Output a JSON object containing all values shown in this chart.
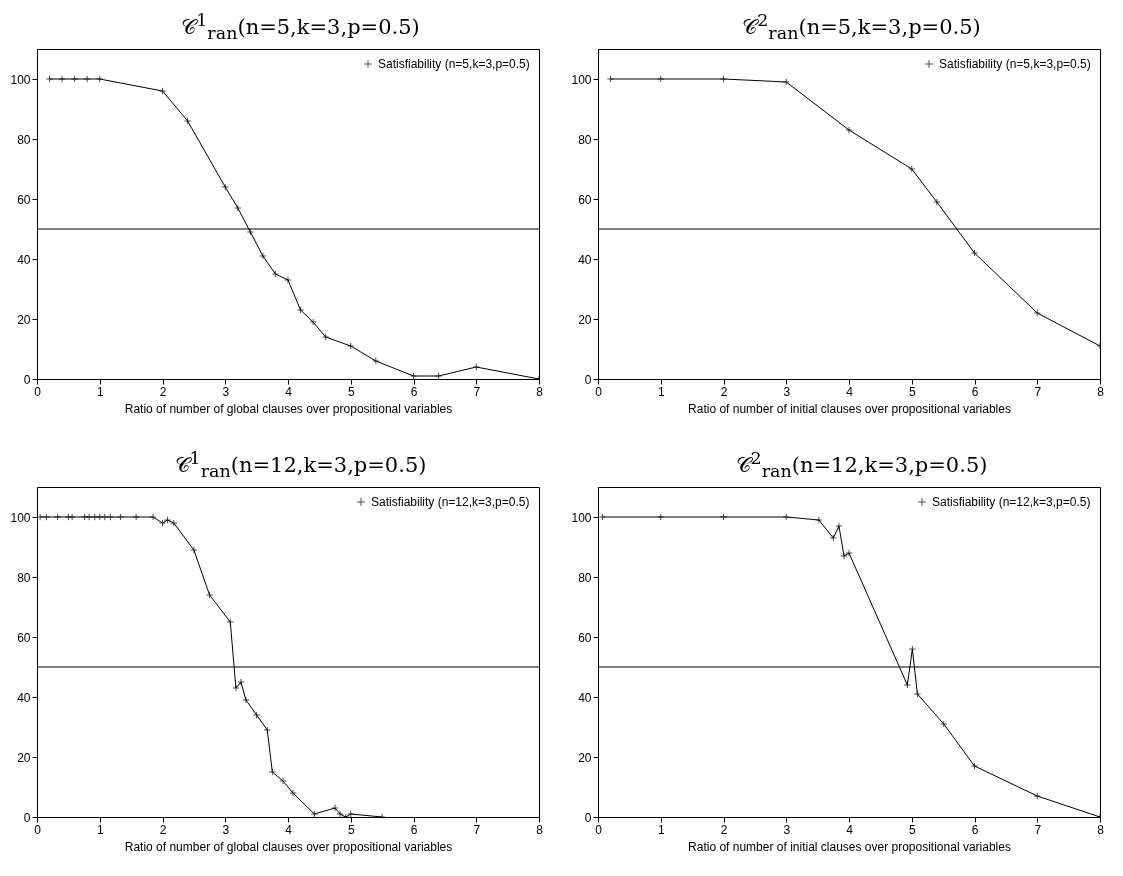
{
  "chart_data": [
    {
      "type": "line",
      "title": "𝒞$^{1}$$_{ran}$(n=5,k=3,p=0.5)",
      "xlabel": "Ratio of number of global clauses over propositional variables",
      "xlim": [
        0,
        8
      ],
      "xticks": [
        0,
        1,
        2,
        3,
        4,
        5,
        6,
        7,
        8
      ],
      "ylim": [
        0,
        110
      ],
      "yticks": [
        0,
        20,
        40,
        60,
        80,
        100
      ],
      "grid": false,
      "legend": "top right",
      "marker": "cross",
      "ref_lines": [
        {
          "axis": "y",
          "value": 50,
          "color": "#000000"
        }
      ],
      "series": [
        {
          "name": "Satisfiability (n=5,k=3,p=0.5)",
          "color": "#000000",
          "x": [
            0.2,
            0.4,
            0.6,
            0.8,
            1.0,
            2,
            2.4,
            3,
            3.2,
            3.4,
            3.6,
            3.8,
            4,
            4.2,
            4.4,
            4.6,
            5,
            5.4,
            6,
            6.4,
            7,
            8
          ],
          "values": [
            100,
            100,
            100,
            100,
            100,
            96,
            86,
            64,
            57,
            49,
            41,
            35,
            33,
            23,
            19,
            14,
            11,
            6,
            1,
            1,
            4,
            0
          ]
        }
      ]
    },
    {
      "type": "line",
      "title": "𝒞$^{2}$$_{ran}$(n=5,k=3,p=0.5)",
      "xlabel": "Ratio of number of initial clauses over propositional variables",
      "xlim": [
        0,
        8
      ],
      "xticks": [
        0,
        1,
        2,
        3,
        4,
        5,
        6,
        7,
        8
      ],
      "ylim": [
        0,
        110
      ],
      "yticks": [
        0,
        20,
        40,
        60,
        80,
        100
      ],
      "grid": false,
      "legend": "top right",
      "marker": "cross",
      "ref_lines": [
        {
          "axis": "y",
          "value": 50,
          "color": "#000000"
        }
      ],
      "series": [
        {
          "name": "Satisfiability (n=5,k=3,p=0.5)",
          "color": "#000000",
          "x": [
            0.2,
            1,
            2,
            3,
            4,
            5,
            5.4,
            6,
            7,
            8
          ],
          "values": [
            100,
            100,
            100,
            99,
            83,
            70,
            59,
            42,
            22,
            11
          ]
        }
      ]
    },
    {
      "type": "line",
      "title": "𝒞$^{1}$$_{ran}$(n=12,k=3,p=0.5)",
      "xlabel": "Ratio of number of global clauses over propositional variables",
      "xlim": [
        0,
        8
      ],
      "xticks": [
        0,
        1,
        2,
        3,
        4,
        5,
        6,
        7,
        8
      ],
      "ylim": [
        0,
        110
      ],
      "yticks": [
        0,
        20,
        40,
        60,
        80,
        100
      ],
      "grid": false,
      "legend": "top right",
      "marker": "cross",
      "ref_lines": [
        {
          "axis": "y",
          "value": 50,
          "color": "#000000"
        }
      ],
      "series": [
        {
          "name": "Satisfiability (n=12,k=3,p=0.5)",
          "color": "#000000",
          "x": [
            0.05,
            0.15,
            0.33,
            0.5,
            0.56,
            0.76,
            0.83,
            0.92,
            1.0,
            1.08,
            1.17,
            1.33,
            1.58,
            1.85,
            2.0,
            2.08,
            2.18,
            2.5,
            2.75,
            3.08,
            3.17,
            3.25,
            3.33,
            3.5,
            3.67,
            3.75,
            3.92,
            4.08,
            4.42,
            4.75,
            4.83,
            4.92,
            5.0,
            5.5
          ],
          "values": [
            100,
            100,
            100,
            100,
            100,
            100,
            100,
            100,
            100,
            100,
            100,
            100,
            100,
            100,
            98,
            99,
            98,
            89,
            74,
            65,
            43,
            45,
            39,
            34,
            29,
            15,
            12,
            8,
            1,
            3,
            1,
            0,
            1,
            0
          ]
        }
      ]
    },
    {
      "type": "line",
      "title": "𝒞$^{2}$$_{ran}$(n=12,k=3,p=0.5)",
      "xlabel": "Ratio of number of initial clauses over propositional variables",
      "xlim": [
        0,
        8
      ],
      "xticks": [
        0,
        1,
        2,
        3,
        4,
        5,
        6,
        7,
        8
      ],
      "ylim": [
        0,
        110
      ],
      "yticks": [
        0,
        20,
        40,
        60,
        80,
        100
      ],
      "grid": false,
      "legend": "top right",
      "marker": "cross",
      "ref_lines": [
        {
          "axis": "y",
          "value": 50,
          "color": "#000000"
        }
      ],
      "series": [
        {
          "name": "Satisfiability (n=12,k=3,p=0.5)",
          "color": "#000000",
          "x": [
            0.07,
            1,
            2,
            3,
            3.52,
            3.75,
            3.84,
            3.92,
            4.0,
            4.93,
            5.01,
            5.09,
            5.51,
            6,
            7,
            8
          ],
          "values": [
            100,
            100,
            100,
            100,
            99,
            93,
            97,
            87,
            88,
            44,
            56,
            41,
            31,
            17,
            7,
            0
          ]
        }
      ]
    }
  ]
}
